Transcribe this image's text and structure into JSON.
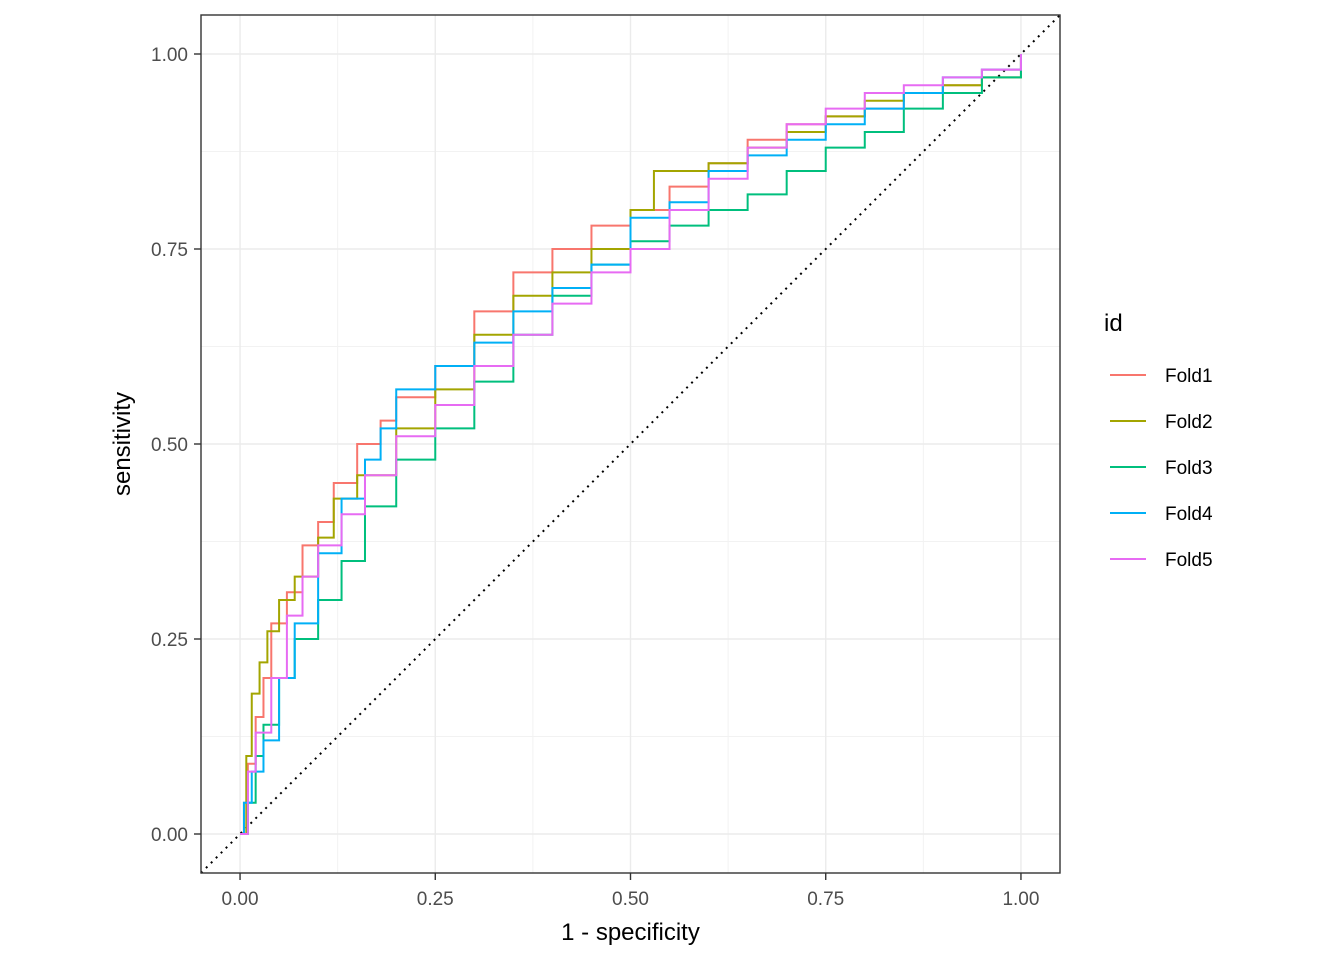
{
  "chart_data": {
    "type": "line",
    "title": "",
    "xlabel": "1 - specificity",
    "ylabel": "sensitivity",
    "xlim": [
      -0.05,
      1.05
    ],
    "ylim": [
      -0.05,
      1.05
    ],
    "x_ticks": [
      0,
      0.25,
      0.5,
      0.75,
      1
    ],
    "x_tick_labels": [
      "0.00",
      "0.25",
      "0.50",
      "0.75",
      "1.00"
    ],
    "y_ticks": [
      0,
      0.25,
      0.5,
      0.75,
      1
    ],
    "y_tick_labels": [
      "0.00",
      "0.25",
      "0.50",
      "0.75",
      "1.00"
    ],
    "grid": true,
    "reference_line": "diagonal dotted",
    "legend": {
      "title": "id",
      "position": "right"
    },
    "series": [
      {
        "name": "Fold1",
        "color": "#F8766D",
        "points": [
          [
            0,
            0
          ],
          [
            0.005,
            0.04
          ],
          [
            0.01,
            0.09
          ],
          [
            0.02,
            0.15
          ],
          [
            0.03,
            0.2
          ],
          [
            0.04,
            0.27
          ],
          [
            0.06,
            0.31
          ],
          [
            0.08,
            0.37
          ],
          [
            0.1,
            0.4
          ],
          [
            0.12,
            0.45
          ],
          [
            0.15,
            0.5
          ],
          [
            0.18,
            0.53
          ],
          [
            0.2,
            0.56
          ],
          [
            0.25,
            0.6
          ],
          [
            0.3,
            0.67
          ],
          [
            0.35,
            0.72
          ],
          [
            0.4,
            0.75
          ],
          [
            0.45,
            0.78
          ],
          [
            0.5,
            0.8
          ],
          [
            0.55,
            0.83
          ],
          [
            0.6,
            0.86
          ],
          [
            0.65,
            0.89
          ],
          [
            0.7,
            0.91
          ],
          [
            0.75,
            0.92
          ],
          [
            0.8,
            0.93
          ],
          [
            0.85,
            0.95
          ],
          [
            0.9,
            0.96
          ],
          [
            0.95,
            0.98
          ],
          [
            1,
            1
          ]
        ]
      },
      {
        "name": "Fold2",
        "color": "#A3A500",
        "points": [
          [
            0,
            0
          ],
          [
            0.008,
            0.1
          ],
          [
            0.015,
            0.18
          ],
          [
            0.025,
            0.22
          ],
          [
            0.035,
            0.26
          ],
          [
            0.05,
            0.3
          ],
          [
            0.07,
            0.33
          ],
          [
            0.1,
            0.38
          ],
          [
            0.12,
            0.43
          ],
          [
            0.15,
            0.46
          ],
          [
            0.2,
            0.52
          ],
          [
            0.25,
            0.57
          ],
          [
            0.3,
            0.64
          ],
          [
            0.35,
            0.69
          ],
          [
            0.4,
            0.72
          ],
          [
            0.45,
            0.75
          ],
          [
            0.5,
            0.8
          ],
          [
            0.53,
            0.85
          ],
          [
            0.6,
            0.86
          ],
          [
            0.65,
            0.88
          ],
          [
            0.7,
            0.9
          ],
          [
            0.75,
            0.92
          ],
          [
            0.8,
            0.94
          ],
          [
            0.85,
            0.95
          ],
          [
            0.9,
            0.96
          ],
          [
            0.95,
            0.97
          ],
          [
            1,
            1
          ]
        ]
      },
      {
        "name": "Fold3",
        "color": "#00BF7D",
        "points": [
          [
            0,
            0
          ],
          [
            0.01,
            0.04
          ],
          [
            0.02,
            0.1
          ],
          [
            0.03,
            0.14
          ],
          [
            0.05,
            0.2
          ],
          [
            0.07,
            0.25
          ],
          [
            0.1,
            0.3
          ],
          [
            0.13,
            0.35
          ],
          [
            0.16,
            0.42
          ],
          [
            0.2,
            0.48
          ],
          [
            0.25,
            0.52
          ],
          [
            0.3,
            0.58
          ],
          [
            0.35,
            0.64
          ],
          [
            0.4,
            0.69
          ],
          [
            0.45,
            0.73
          ],
          [
            0.5,
            0.76
          ],
          [
            0.55,
            0.78
          ],
          [
            0.6,
            0.8
          ],
          [
            0.65,
            0.82
          ],
          [
            0.7,
            0.85
          ],
          [
            0.75,
            0.88
          ],
          [
            0.8,
            0.9
          ],
          [
            0.85,
            0.93
          ],
          [
            0.9,
            0.95
          ],
          [
            0.95,
            0.97
          ],
          [
            1,
            1
          ]
        ]
      },
      {
        "name": "Fold4",
        "color": "#00B0F6",
        "points": [
          [
            0,
            0
          ],
          [
            0.005,
            0.04
          ],
          [
            0.015,
            0.08
          ],
          [
            0.03,
            0.12
          ],
          [
            0.05,
            0.2
          ],
          [
            0.07,
            0.27
          ],
          [
            0.1,
            0.36
          ],
          [
            0.13,
            0.43
          ],
          [
            0.16,
            0.48
          ],
          [
            0.18,
            0.52
          ],
          [
            0.2,
            0.57
          ],
          [
            0.25,
            0.6
          ],
          [
            0.3,
            0.63
          ],
          [
            0.35,
            0.67
          ],
          [
            0.4,
            0.7
          ],
          [
            0.45,
            0.73
          ],
          [
            0.5,
            0.79
          ],
          [
            0.55,
            0.81
          ],
          [
            0.6,
            0.85
          ],
          [
            0.65,
            0.87
          ],
          [
            0.7,
            0.89
          ],
          [
            0.75,
            0.91
          ],
          [
            0.8,
            0.93
          ],
          [
            0.85,
            0.95
          ],
          [
            0.9,
            0.97
          ],
          [
            0.95,
            0.98
          ],
          [
            1,
            1
          ]
        ]
      },
      {
        "name": "Fold5",
        "color": "#E76BF3",
        "points": [
          [
            0,
            0
          ],
          [
            0.01,
            0.08
          ],
          [
            0.02,
            0.13
          ],
          [
            0.04,
            0.2
          ],
          [
            0.06,
            0.28
          ],
          [
            0.08,
            0.33
          ],
          [
            0.1,
            0.37
          ],
          [
            0.13,
            0.41
          ],
          [
            0.16,
            0.46
          ],
          [
            0.2,
            0.51
          ],
          [
            0.25,
            0.55
          ],
          [
            0.3,
            0.6
          ],
          [
            0.35,
            0.64
          ],
          [
            0.4,
            0.68
          ],
          [
            0.45,
            0.72
          ],
          [
            0.5,
            0.75
          ],
          [
            0.55,
            0.8
          ],
          [
            0.6,
            0.84
          ],
          [
            0.65,
            0.88
          ],
          [
            0.7,
            0.91
          ],
          [
            0.75,
            0.93
          ],
          [
            0.8,
            0.95
          ],
          [
            0.85,
            0.96
          ],
          [
            0.9,
            0.97
          ],
          [
            0.95,
            0.98
          ],
          [
            1,
            1
          ]
        ]
      }
    ]
  }
}
